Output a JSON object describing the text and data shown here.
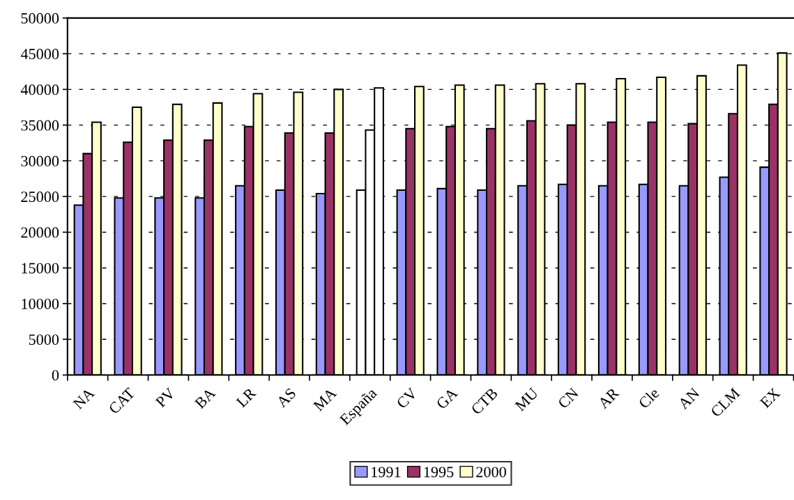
{
  "chart_data": {
    "type": "bar",
    "categories": [
      "NA",
      "CAT",
      "PV",
      "BA",
      "LR",
      "AS",
      "MA",
      "España",
      "CV",
      "GA",
      "CTB",
      "MU",
      "CN",
      "AR",
      "Cle",
      "AN",
      "CLM",
      "EX"
    ],
    "series": [
      {
        "name": "1991",
        "color": "#9999ff",
        "colors": [
          "#9999ff",
          "#9999ff",
          "#9999ff",
          "#9999ff",
          "#9999ff",
          "#9999ff",
          "#9999ff",
          "#ffffff",
          "#9999ff",
          "#9999ff",
          "#9999ff",
          "#9999ff",
          "#9999ff",
          "#9999ff",
          "#9999ff",
          "#9999ff",
          "#9999ff",
          "#9999ff"
        ],
        "values": [
          23800,
          24800,
          24800,
          24800,
          26500,
          25900,
          25400,
          25900,
          25900,
          26100,
          25900,
          26500,
          26700,
          26500,
          26700,
          26500,
          27700,
          29100
        ]
      },
      {
        "name": "1995",
        "color": "#993366",
        "colors": [
          "#993366",
          "#993366",
          "#993366",
          "#993366",
          "#993366",
          "#993366",
          "#993366",
          "#ffffff",
          "#993366",
          "#993366",
          "#993366",
          "#993366",
          "#993366",
          "#993366",
          "#993366",
          "#993366",
          "#993366",
          "#993366"
        ],
        "values": [
          31000,
          32600,
          32900,
          32900,
          34800,
          33900,
          33900,
          34300,
          34500,
          34800,
          34500,
          35600,
          35000,
          35400,
          35400,
          35200,
          36600,
          37900
        ]
      },
      {
        "name": "2000",
        "color": "#ffffcc",
        "colors": [
          "#ffffcc",
          "#ffffcc",
          "#ffffcc",
          "#ffffcc",
          "#ffffcc",
          "#ffffcc",
          "#ffffcc",
          "#ffffff",
          "#ffffcc",
          "#ffffcc",
          "#ffffcc",
          "#ffffcc",
          "#ffffcc",
          "#ffffcc",
          "#ffffcc",
          "#ffffcc",
          "#ffffcc",
          "#ffffcc"
        ],
        "values": [
          35400,
          37500,
          37900,
          38100,
          39400,
          39600,
          40000,
          40200,
          40400,
          40600,
          40600,
          40800,
          40800,
          41500,
          41700,
          41900,
          43400,
          45100
        ]
      }
    ],
    "ylim": [
      0,
      50000
    ],
    "yticks": [
      0,
      5000,
      10000,
      15000,
      20000,
      25000,
      30000,
      35000,
      40000,
      45000,
      50000
    ],
    "grid": "y",
    "legend": "bottom"
  }
}
